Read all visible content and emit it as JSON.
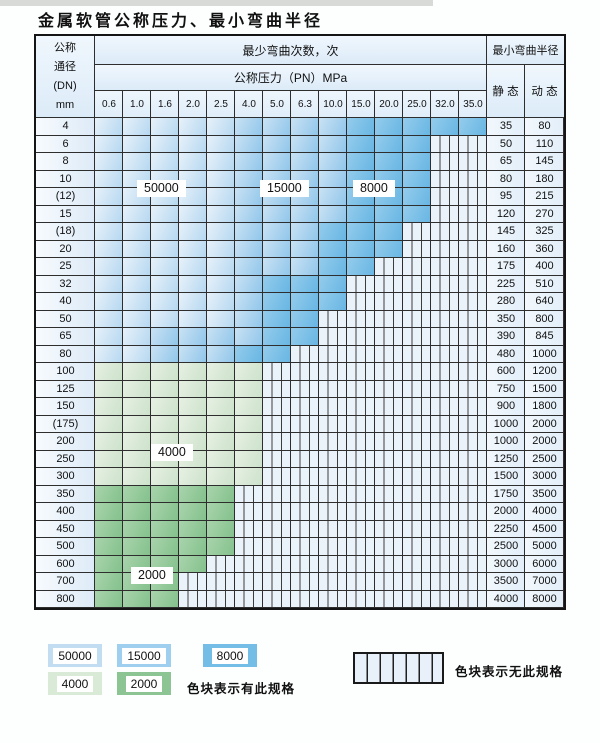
{
  "page": {
    "title": "金属软管公称压力、最小弯曲半径"
  },
  "table": {
    "header": {
      "dn_label_lines": [
        "公称",
        "通径",
        "(DN)",
        "mm"
      ],
      "bend_cycles_label": "最少弯曲次数，次",
      "pressure_label": "公称压力（PN）MPa",
      "bend_radius_label": "最小弯曲半径",
      "static_label": "静 态",
      "dynamic_label": "动 态",
      "pressure_columns": [
        "0.6",
        "1.0",
        "1.6",
        "2.0",
        "2.5",
        "4.0",
        "5.0",
        "6.3",
        "10.0",
        "15.0",
        "20.0",
        "25.0",
        "32.0",
        "35.0"
      ]
    },
    "zone_labels": {
      "cycles_50000": "50000",
      "cycles_15000": "15000",
      "cycles_8000": "8000",
      "cycles_4000": "4000",
      "cycles_2000": "2000"
    },
    "rows": [
      {
        "dn": "4",
        "static": "35",
        "dynamic": "80",
        "zones": [
          {
            "count": "50000",
            "from": 0,
            "to": 4
          },
          {
            "count": "15000",
            "from": 5,
            "to": 8
          },
          {
            "count": "8000",
            "from": 9,
            "to": 13
          }
        ],
        "no_spec_from": null
      },
      {
        "dn": "6",
        "static": "50",
        "dynamic": "110",
        "zones": [
          {
            "count": "50000",
            "from": 0,
            "to": 4
          },
          {
            "count": "15000",
            "from": 5,
            "to": 8
          },
          {
            "count": "8000",
            "from": 9,
            "to": 11
          }
        ],
        "no_spec_from": 12
      },
      {
        "dn": "8",
        "static": "65",
        "dynamic": "145",
        "zones": [
          {
            "count": "50000",
            "from": 0,
            "to": 4
          },
          {
            "count": "15000",
            "from": 5,
            "to": 8
          },
          {
            "count": "8000",
            "from": 9,
            "to": 11
          }
        ],
        "no_spec_from": 12
      },
      {
        "dn": "10",
        "static": "80",
        "dynamic": "180",
        "zones": [
          {
            "count": "50000",
            "from": 0,
            "to": 4
          },
          {
            "count": "15000",
            "from": 5,
            "to": 8
          },
          {
            "count": "8000",
            "from": 9,
            "to": 11
          }
        ],
        "no_spec_from": 12
      },
      {
        "dn": "(12)",
        "static": "95",
        "dynamic": "215",
        "zones": [
          {
            "count": "50000",
            "from": 0,
            "to": 4
          },
          {
            "count": "15000",
            "from": 5,
            "to": 8
          },
          {
            "count": "8000",
            "from": 9,
            "to": 11
          }
        ],
        "no_spec_from": 12
      },
      {
        "dn": "15",
        "static": "120",
        "dynamic": "270",
        "zones": [
          {
            "count": "50000",
            "from": 0,
            "to": 4
          },
          {
            "count": "15000",
            "from": 5,
            "to": 8
          },
          {
            "count": "8000",
            "from": 9,
            "to": 11
          }
        ],
        "no_spec_from": 12
      },
      {
        "dn": "(18)",
        "static": "145",
        "dynamic": "325",
        "zones": [
          {
            "count": "50000",
            "from": 0,
            "to": 4
          },
          {
            "count": "15000",
            "from": 5,
            "to": 7
          },
          {
            "count": "8000",
            "from": 8,
            "to": 10
          }
        ],
        "no_spec_from": 11
      },
      {
        "dn": "20",
        "static": "160",
        "dynamic": "360",
        "zones": [
          {
            "count": "50000",
            "from": 0,
            "to": 4
          },
          {
            "count": "15000",
            "from": 5,
            "to": 7
          },
          {
            "count": "8000",
            "from": 8,
            "to": 10
          }
        ],
        "no_spec_from": 11
      },
      {
        "dn": "25",
        "static": "175",
        "dynamic": "400",
        "zones": [
          {
            "count": "50000",
            "from": 0,
            "to": 4
          },
          {
            "count": "15000",
            "from": 5,
            "to": 7
          },
          {
            "count": "8000",
            "from": 8,
            "to": 9
          }
        ],
        "no_spec_from": 10
      },
      {
        "dn": "32",
        "static": "225",
        "dynamic": "510",
        "zones": [
          {
            "count": "50000",
            "from": 0,
            "to": 4
          },
          {
            "count": "15000",
            "from": 5,
            "to": 5
          },
          {
            "count": "8000",
            "from": 6,
            "to": 8
          }
        ],
        "no_spec_from": 9
      },
      {
        "dn": "40",
        "static": "280",
        "dynamic": "640",
        "zones": [
          {
            "count": "50000",
            "from": 0,
            "to": 4
          },
          {
            "count": "15000",
            "from": 5,
            "to": 5
          },
          {
            "count": "8000",
            "from": 6,
            "to": 8
          }
        ],
        "no_spec_from": 9
      },
      {
        "dn": "50",
        "static": "350",
        "dynamic": "800",
        "zones": [
          {
            "count": "50000",
            "from": 0,
            "to": 4
          },
          {
            "count": "15000",
            "from": 5,
            "to": 5
          },
          {
            "count": "8000",
            "from": 6,
            "to": 7
          }
        ],
        "no_spec_from": 8
      },
      {
        "dn": "65",
        "static": "390",
        "dynamic": "845",
        "zones": [
          {
            "count": "50000",
            "from": 0,
            "to": 1
          },
          {
            "count": "15000",
            "from": 2,
            "to": 5
          },
          {
            "count": "8000",
            "from": 6,
            "to": 7
          }
        ],
        "no_spec_from": 8
      },
      {
        "dn": "80",
        "static": "480",
        "dynamic": "1000",
        "zones": [
          {
            "count": "50000",
            "from": 0,
            "to": 1
          },
          {
            "count": "15000",
            "from": 2,
            "to": 4
          },
          {
            "count": "8000",
            "from": 5,
            "to": 6
          }
        ],
        "no_spec_from": 7
      },
      {
        "dn": "100",
        "static": "600",
        "dynamic": "1200",
        "zones": [
          {
            "count": "4000",
            "from": 0,
            "to": 5
          }
        ],
        "no_spec_from": 6
      },
      {
        "dn": "125",
        "static": "750",
        "dynamic": "1500",
        "zones": [
          {
            "count": "4000",
            "from": 0,
            "to": 5
          }
        ],
        "no_spec_from": 6
      },
      {
        "dn": "150",
        "static": "900",
        "dynamic": "1800",
        "zones": [
          {
            "count": "4000",
            "from": 0,
            "to": 5
          }
        ],
        "no_spec_from": 6
      },
      {
        "dn": "(175)",
        "static": "1000",
        "dynamic": "2000",
        "zones": [
          {
            "count": "4000",
            "from": 0,
            "to": 5
          }
        ],
        "no_spec_from": 6
      },
      {
        "dn": "200",
        "static": "1000",
        "dynamic": "2000",
        "zones": [
          {
            "count": "4000",
            "from": 0,
            "to": 5
          }
        ],
        "no_spec_from": 6
      },
      {
        "dn": "250",
        "static": "1250",
        "dynamic": "2500",
        "zones": [
          {
            "count": "4000",
            "from": 0,
            "to": 5
          }
        ],
        "no_spec_from": 6
      },
      {
        "dn": "300",
        "static": "1500",
        "dynamic": "3000",
        "zones": [
          {
            "count": "4000",
            "from": 0,
            "to": 5
          }
        ],
        "no_spec_from": 6
      },
      {
        "dn": "350",
        "static": "1750",
        "dynamic": "3500",
        "zones": [
          {
            "count": "2000",
            "from": 0,
            "to": 4
          }
        ],
        "no_spec_from": 5
      },
      {
        "dn": "400",
        "static": "2000",
        "dynamic": "4000",
        "zones": [
          {
            "count": "2000",
            "from": 0,
            "to": 4
          }
        ],
        "no_spec_from": 5
      },
      {
        "dn": "450",
        "static": "2250",
        "dynamic": "4500",
        "zones": [
          {
            "count": "2000",
            "from": 0,
            "to": 4
          }
        ],
        "no_spec_from": 5
      },
      {
        "dn": "500",
        "static": "2500",
        "dynamic": "5000",
        "zones": [
          {
            "count": "2000",
            "from": 0,
            "to": 4
          }
        ],
        "no_spec_from": 5
      },
      {
        "dn": "600",
        "static": "3000",
        "dynamic": "6000",
        "zones": [
          {
            "count": "2000",
            "from": 0,
            "to": 3
          }
        ],
        "no_spec_from": 4
      },
      {
        "dn": "700",
        "static": "3500",
        "dynamic": "7000",
        "zones": [
          {
            "count": "2000",
            "from": 0,
            "to": 2
          }
        ],
        "no_spec_from": 3
      },
      {
        "dn": "800",
        "static": "4000",
        "dynamic": "8000",
        "zones": [
          {
            "count": "2000",
            "from": 0,
            "to": 2
          }
        ],
        "no_spec_from": 3
      }
    ]
  },
  "legend": {
    "items": [
      {
        "label": "50000",
        "color": "#c2ddf2"
      },
      {
        "label": "15000",
        "color": "#9ecfee"
      },
      {
        "label": "8000",
        "color": "#74bde6"
      },
      {
        "label": "4000",
        "color": "#d9ead6"
      },
      {
        "label": "2000",
        "color": "#8cc593"
      }
    ],
    "has_spec_text": "色块表示有此规格",
    "no_spec_text": "色块表示无此规格"
  },
  "colors": {
    "cycles_50000": "#cfe3f4",
    "cycles_15000": "#a9d2ed",
    "cycles_8000": "#7cc0e7",
    "cycles_4000": "#d7e9d6",
    "cycles_2000": "#95ca9a",
    "no_spec_bg": "#e9f1f9",
    "grid_line": "#2e2e2e"
  }
}
